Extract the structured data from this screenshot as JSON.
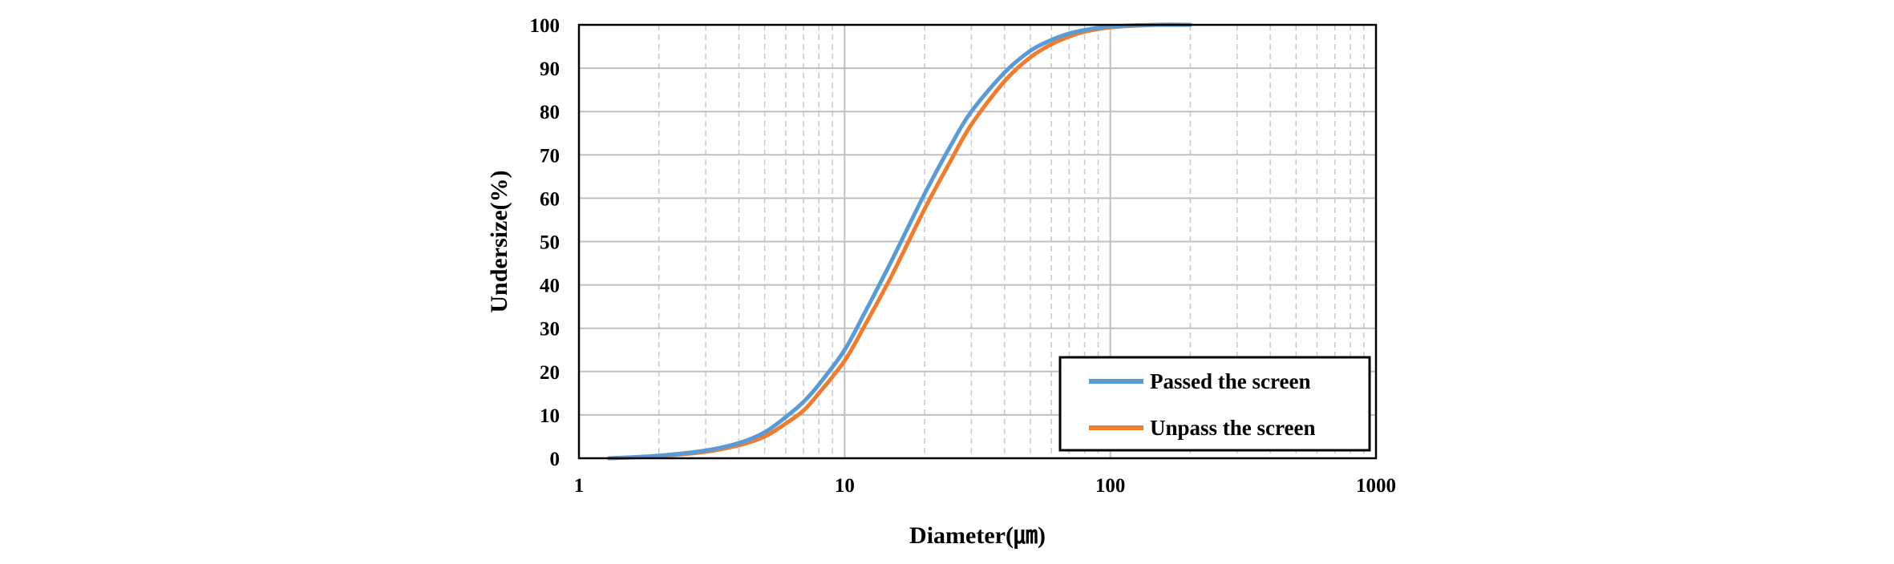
{
  "chart_data": {
    "type": "line",
    "xscale": "log",
    "xlim": [
      1,
      1000
    ],
    "ylim": [
      0,
      100
    ],
    "xlabel": "Diameter(㎛)",
    "ylabel": "Undersize(%)",
    "xticks": [
      "1",
      "10",
      "100",
      "1000"
    ],
    "yticks": [
      "0",
      "10",
      "20",
      "30",
      "40",
      "50",
      "60",
      "70",
      "80",
      "90",
      "100"
    ],
    "grid": true,
    "legend_position": "bottom-right",
    "series": [
      {
        "name": "Passed the screen",
        "color": "#5B9BD5",
        "x": [
          1.3,
          2,
          3,
          4,
          5,
          6,
          7,
          8,
          10,
          12,
          15,
          20,
          25,
          30,
          40,
          50,
          60,
          70,
          80,
          100,
          150,
          200
        ],
        "y": [
          0,
          0.6,
          1.8,
          3.5,
          6,
          9.5,
          13,
          17,
          25,
          34,
          45.5,
          61,
          72,
          80,
          89,
          94,
          96.5,
          98,
          98.8,
          99.6,
          100,
          100
        ]
      },
      {
        "name": "Unpass the screen",
        "color": "#ED7D31",
        "x": [
          1.3,
          2,
          3,
          4,
          5,
          6,
          7,
          8,
          10,
          12,
          15,
          20,
          25,
          30,
          40,
          50,
          60,
          70,
          80,
          100,
          150,
          200
        ],
        "y": [
          0,
          0.5,
          1.5,
          3,
          5,
          8,
          11,
          15,
          22.5,
          31,
          42,
          57.5,
          68.5,
          77,
          87,
          92.5,
          95.5,
          97.3,
          98.4,
          99.4,
          100,
          100
        ]
      }
    ]
  }
}
